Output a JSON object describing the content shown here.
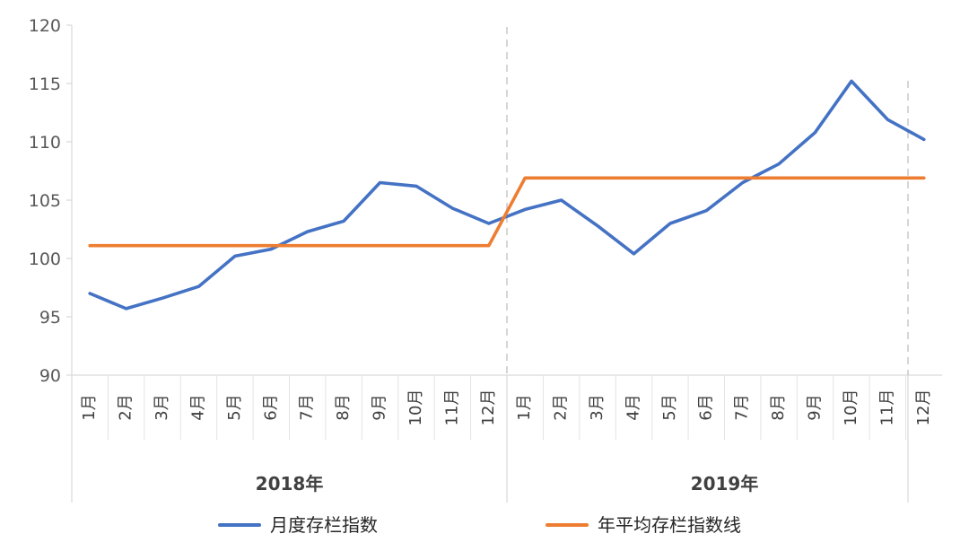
{
  "chart_data": {
    "type": "line",
    "title": "",
    "xlabel": "",
    "ylabel": "",
    "ylim": [
      90,
      120
    ],
    "yticks": [
      90,
      95,
      100,
      105,
      110,
      115,
      120
    ],
    "groups": [
      {
        "label": "2018年",
        "categories": [
          "1月",
          "2月",
          "3月",
          "4月",
          "5月",
          "6月",
          "7月",
          "8月",
          "9月",
          "10月",
          "11月",
          "12月"
        ]
      },
      {
        "label": "2019年",
        "categories": [
          "1月",
          "2月",
          "3月",
          "4月",
          "5月",
          "6月",
          "7月",
          "8月",
          "9月",
          "10月",
          "11月",
          "12月"
        ]
      }
    ],
    "series": [
      {
        "name": "月度存栏指数",
        "color": "#4472c4",
        "values": [
          97.0,
          95.7,
          96.6,
          97.6,
          100.2,
          100.8,
          102.3,
          103.2,
          106.5,
          106.2,
          104.3,
          103.0,
          104.2,
          105.0,
          102.8,
          100.4,
          103.0,
          104.1,
          106.5,
          108.1,
          110.8,
          115.2,
          111.9,
          110.2
        ]
      },
      {
        "name": "年平均存栏指数线",
        "color": "#ed7d31",
        "values": [
          101.1,
          101.1,
          101.1,
          101.1,
          101.1,
          101.1,
          101.1,
          101.1,
          101.1,
          101.1,
          101.1,
          101.1,
          106.9,
          106.9,
          106.9,
          106.9,
          106.9,
          106.9,
          106.9,
          106.9,
          106.9,
          106.9,
          106.9,
          106.9
        ]
      }
    ],
    "legend_position": "bottom",
    "grid": false
  }
}
